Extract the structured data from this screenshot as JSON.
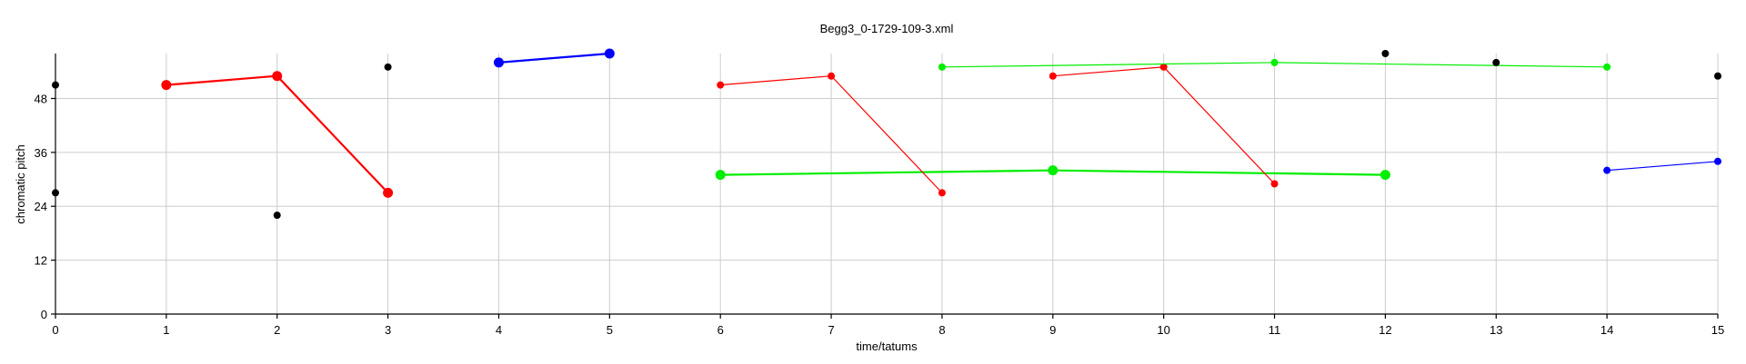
{
  "chart_data": {
    "type": "scatter",
    "title": "Begg3_0-1729-109-3.xml",
    "xlabel": "time/tatums",
    "ylabel": "chromatic pitch",
    "xlim": [
      0,
      15
    ],
    "ylim": [
      0,
      58
    ],
    "x_ticks": [
      "0",
      "1",
      "2",
      "3",
      "4",
      "5",
      "6",
      "7",
      "8",
      "9",
      "10",
      "11",
      "12",
      "13",
      "14",
      "15"
    ],
    "y_ticks": [
      "0",
      "12",
      "24",
      "36",
      "48"
    ],
    "grid": true,
    "series": [
      {
        "color": "#ff0000",
        "size": "large",
        "points": [
          [
            1,
            51
          ],
          [
            2,
            53
          ],
          [
            3,
            27
          ]
        ]
      },
      {
        "color": "#0000ff",
        "size": "large",
        "points": [
          [
            4,
            56
          ],
          [
            5,
            58
          ]
        ]
      },
      {
        "color": "#00ee00",
        "size": "large",
        "points": [
          [
            6,
            31
          ],
          [
            9,
            32
          ],
          [
            12,
            31
          ]
        ]
      },
      {
        "color": "#ff0000",
        "size": "small",
        "points": [
          [
            6,
            51
          ],
          [
            7,
            53
          ],
          [
            8,
            27
          ]
        ]
      },
      {
        "color": "#ff0000",
        "size": "small",
        "points": [
          [
            9,
            53
          ],
          [
            10,
            55
          ],
          [
            11,
            29
          ]
        ]
      },
      {
        "color": "#00ee00",
        "size": "small",
        "points": [
          [
            8,
            55
          ],
          [
            11,
            56
          ],
          [
            14,
            55
          ]
        ]
      },
      {
        "color": "#0000ff",
        "size": "small",
        "points": [
          [
            14,
            32
          ],
          [
            15,
            34
          ]
        ]
      }
    ],
    "isolated_points": {
      "color": "#000000",
      "points": [
        [
          0,
          51
        ],
        [
          0,
          27
        ],
        [
          2,
          22
        ],
        [
          3,
          55
        ],
        [
          12,
          58
        ],
        [
          13,
          56
        ],
        [
          15,
          53
        ]
      ]
    }
  }
}
